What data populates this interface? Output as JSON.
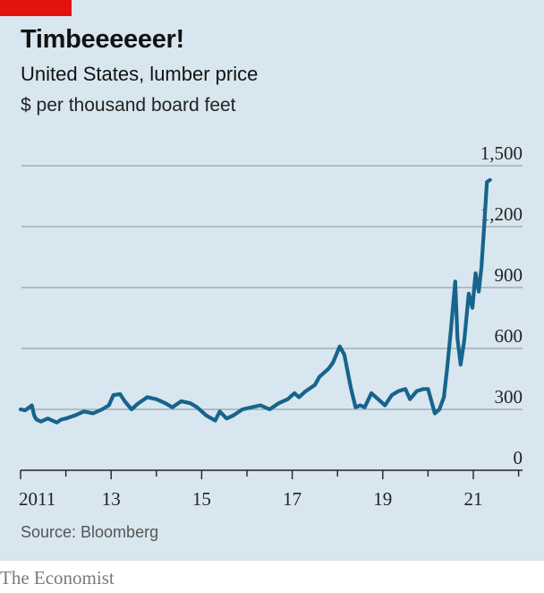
{
  "colors": {
    "accent": "#e3120b",
    "line": "#17648d",
    "grid": "#9aa4ab",
    "axis": "#222222",
    "background": "#d8e6ef"
  },
  "title": "Timbeeeeeer!",
  "subtitle": "United States, lumber price",
  "unit_label": "$ per thousand board feet",
  "source": "Source: Bloomberg",
  "brand": "The Economist",
  "chart_data": {
    "type": "line",
    "title": "Timbeeeeeer!",
    "subtitle": "United States, lumber price",
    "ylabel": "$ per thousand board feet",
    "xlabel": "",
    "ylim": [
      0,
      1500
    ],
    "xlim": [
      2011,
      2022.3
    ],
    "y_ticks": [
      0,
      300,
      600,
      900,
      1200,
      1500
    ],
    "y_tick_labels": [
      "0",
      "300",
      "600",
      "900",
      "1,200",
      "1,500"
    ],
    "x_ticks": [
      2011,
      2013,
      2015,
      2017,
      2019,
      2021
    ],
    "x_tick_labels": [
      "2011",
      "13",
      "15",
      "17",
      "19",
      "21"
    ],
    "grid": true,
    "series": [
      {
        "x": [
          2011.0,
          2011.1,
          2011.25,
          2011.3,
          2011.35,
          2011.45,
          2011.6,
          2011.8,
          2011.9,
          2012.0,
          2012.2,
          2012.4,
          2012.6,
          2012.8,
          2012.95,
          2013.05,
          2013.2,
          2013.3,
          2013.45,
          2013.6,
          2013.8,
          2014.0,
          2014.2,
          2014.35,
          2014.55,
          2014.75,
          2014.9,
          2015.1,
          2015.3,
          2015.4,
          2015.55,
          2015.7,
          2015.9,
          2016.1,
          2016.3,
          2016.5,
          2016.7,
          2016.9,
          2017.05,
          2017.15,
          2017.3,
          2017.5,
          2017.6,
          2017.8,
          2017.9,
          2018.05,
          2018.15,
          2018.3,
          2018.4,
          2018.5,
          2018.6,
          2018.75,
          2018.9,
          2019.05,
          2019.2,
          2019.35,
          2019.5,
          2019.6,
          2019.75,
          2019.9,
          2020.0,
          2020.15,
          2020.25,
          2020.35,
          2020.42,
          2020.5,
          2020.6,
          2020.65,
          2020.72,
          2020.8,
          2020.9,
          2020.98,
          2021.05,
          2021.12,
          2021.18,
          2021.24,
          2021.3,
          2021.37
        ],
        "values": [
          300,
          295,
          320,
          270,
          250,
          240,
          255,
          235,
          250,
          255,
          270,
          290,
          280,
          300,
          320,
          370,
          375,
          340,
          300,
          330,
          360,
          350,
          330,
          310,
          340,
          330,
          310,
          270,
          245,
          290,
          255,
          270,
          300,
          310,
          320,
          300,
          330,
          350,
          380,
          360,
          390,
          420,
          460,
          500,
          530,
          610,
          570,
          400,
          310,
          320,
          310,
          380,
          350,
          320,
          370,
          390,
          400,
          350,
          390,
          400,
          400,
          280,
          300,
          360,
          500,
          680,
          930,
          650,
          520,
          640,
          870,
          800,
          970,
          880,
          1000,
          1200,
          1420,
          1430
        ]
      }
    ]
  }
}
